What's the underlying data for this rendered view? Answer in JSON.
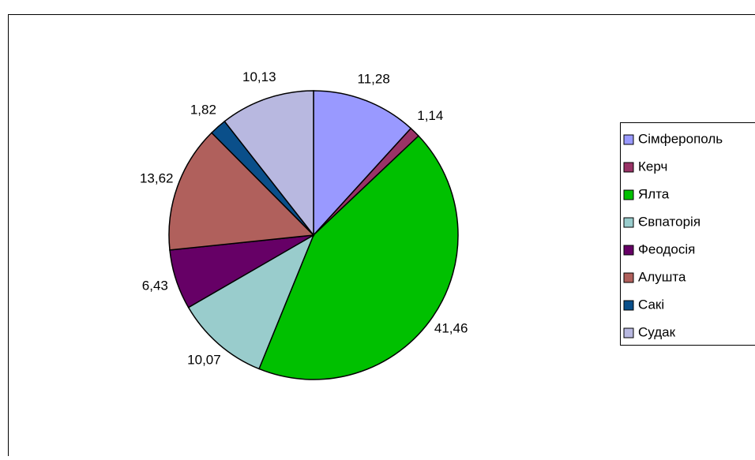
{
  "chart_data": {
    "type": "pie",
    "categories": [
      "Сімферополь",
      "Керч",
      "Ялта",
      "Євпаторія",
      "Феодосія",
      "Алушта",
      "Сакі",
      "Судак"
    ],
    "values": [
      11.28,
      1.14,
      41.46,
      10.07,
      6.43,
      13.62,
      1.82,
      10.13
    ],
    "value_labels": [
      "11,28",
      "1,14",
      "41,46",
      "10,07",
      "6,43",
      "13,62",
      "1,82",
      "10,13"
    ],
    "colors": [
      "#9999ff",
      "#993366",
      "#00c000",
      "#99cccc",
      "#660066",
      "#b0605c",
      "#0a4f8a",
      "#b8b8e0"
    ],
    "legend": "right"
  }
}
